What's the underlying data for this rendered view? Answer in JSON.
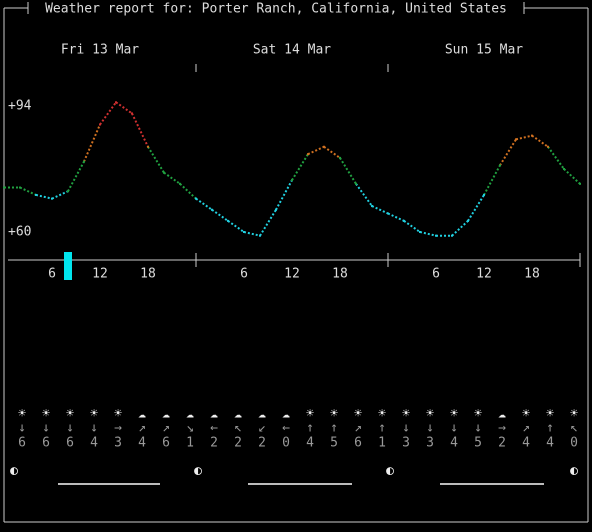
{
  "title": "Weather report for: Porter Ranch, California, United States",
  "days": [
    "Fri 13 Mar",
    "Sat 14 Mar",
    "Sun 15 Mar"
  ],
  "temperature_scale": [
    {
      "value": 94,
      "label": "+94"
    },
    {
      "value": 60,
      "label": "+60"
    }
  ],
  "temperature": {
    "hours": [
      0,
      2,
      4,
      6,
      8,
      10,
      12,
      14,
      16,
      18,
      20,
      22,
      24,
      26,
      28,
      30,
      32,
      34,
      36,
      38,
      40,
      42,
      44,
      46,
      48,
      50,
      52,
      54,
      56,
      58,
      60,
      62,
      64,
      66,
      68,
      70,
      72
    ],
    "values": [
      72,
      72,
      70,
      69,
      71,
      79,
      89,
      95,
      92,
      83,
      76,
      73,
      69,
      66,
      63,
      60,
      59,
      66,
      74,
      81,
      83,
      80,
      73,
      67,
      65,
      63,
      60,
      59,
      59,
      63,
      70,
      78,
      85,
      86,
      83,
      77,
      73
    ]
  },
  "hour_ticks": [
    6,
    12,
    18
  ],
  "forecast": {
    "icons": [
      "☀",
      "☀",
      "☀",
      "☀",
      "☀",
      "☁",
      "☁",
      "☁",
      "☁",
      "☁",
      "☁",
      "☁",
      "☀",
      "☀",
      "☀",
      "☀",
      "☀",
      "☀",
      "☀",
      "☀",
      "☁",
      "☀",
      "☀",
      "☀"
    ],
    "wind_directions": [
      "↓",
      "↓",
      "↓",
      "↓",
      "→",
      "↗",
      "↗",
      "↘",
      "←",
      "↖",
      "↙",
      "←",
      "↑",
      "↑",
      "↗",
      "↑",
      "↓",
      "↓",
      "↓",
      "↓",
      "→",
      "↗",
      "↑",
      "↖"
    ],
    "wind_speeds": [
      6,
      6,
      6,
      4,
      3,
      4,
      6,
      1,
      2,
      2,
      2,
      0,
      4,
      5,
      6,
      1,
      3,
      3,
      4,
      5,
      2,
      4,
      4,
      0
    ]
  },
  "moon_phases": [
    "◐",
    "◐",
    "◐",
    "◐"
  ]
}
